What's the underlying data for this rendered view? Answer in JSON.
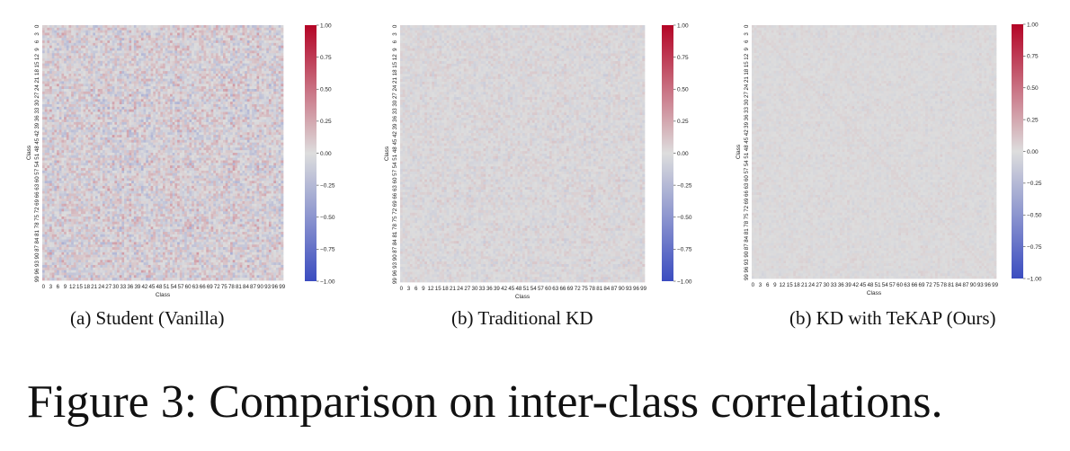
{
  "figure_caption": "Figure 3: Comparison on inter-class correlations.",
  "colormap": {
    "negative": "#3b4cc0",
    "neutral": "#dddddd",
    "positive": "#b40426"
  },
  "chart_data": [
    {
      "type": "heatmap",
      "caption": "(a) Student (Vanilla)",
      "xlabel": "Class",
      "ylabel": "Class",
      "x_ticks": [
        "0",
        "3",
        "6",
        "9",
        "12",
        "15",
        "18",
        "21",
        "24",
        "27",
        "30",
        "33",
        "36",
        "39",
        "42",
        "45",
        "48",
        "51",
        "54",
        "57",
        "60",
        "63",
        "66",
        "69",
        "72",
        "75",
        "78",
        "81",
        "84",
        "87",
        "90",
        "93",
        "96",
        "99"
      ],
      "y_ticks": [
        "0",
        "3",
        "6",
        "9",
        "12",
        "15",
        "18",
        "21",
        "24",
        "27",
        "30",
        "33",
        "36",
        "39",
        "42",
        "45",
        "48",
        "51",
        "54",
        "57",
        "60",
        "63",
        "66",
        "69",
        "72",
        "75",
        "78",
        "81",
        "84",
        "87",
        "90",
        "93",
        "96",
        "99"
      ],
      "n_classes": 100,
      "value_range": [
        -1.0,
        1.0
      ],
      "colorbar_ticks": [
        "1.00",
        "0.75",
        "0.50",
        "0.25",
        "0.00",
        "−0.25",
        "−0.50",
        "−0.75",
        "−1.00"
      ],
      "typical_abs_correlation": 0.25
    },
    {
      "type": "heatmap",
      "caption": "(b) Traditional KD",
      "xlabel": "Class",
      "ylabel": "Class",
      "x_ticks": [
        "0",
        "3",
        "6",
        "9",
        "12",
        "15",
        "18",
        "21",
        "24",
        "27",
        "30",
        "33",
        "36",
        "39",
        "42",
        "45",
        "48",
        "51",
        "54",
        "57",
        "60",
        "63",
        "66",
        "69",
        "72",
        "75",
        "78",
        "81",
        "84",
        "87",
        "90",
        "93",
        "96",
        "99"
      ],
      "y_ticks": [
        "0",
        "3",
        "6",
        "9",
        "12",
        "15",
        "18",
        "21",
        "24",
        "27",
        "30",
        "33",
        "36",
        "39",
        "42",
        "45",
        "48",
        "51",
        "54",
        "57",
        "60",
        "63",
        "66",
        "69",
        "72",
        "75",
        "78",
        "81",
        "84",
        "87",
        "90",
        "93",
        "96",
        "99"
      ],
      "n_classes": 100,
      "value_range": [
        -1.0,
        1.0
      ],
      "colorbar_ticks": [
        "1.00",
        "0.75",
        "0.50",
        "0.25",
        "0.00",
        "−0.25",
        "−0.50",
        "−0.75",
        "−1.00"
      ],
      "typical_abs_correlation": 0.1
    },
    {
      "type": "heatmap",
      "caption": "(b) KD with TeKAP (Ours)",
      "xlabel": "Class",
      "ylabel": "Class",
      "x_ticks": [
        "0",
        "3",
        "6",
        "9",
        "12",
        "15",
        "18",
        "21",
        "24",
        "27",
        "30",
        "33",
        "36",
        "39",
        "42",
        "45",
        "48",
        "51",
        "54",
        "57",
        "60",
        "63",
        "66",
        "69",
        "72",
        "75",
        "78",
        "81",
        "84",
        "87",
        "90",
        "93",
        "96",
        "99"
      ],
      "y_ticks": [
        "0",
        "3",
        "6",
        "9",
        "12",
        "15",
        "18",
        "21",
        "24",
        "27",
        "30",
        "33",
        "36",
        "39",
        "42",
        "45",
        "48",
        "51",
        "54",
        "57",
        "60",
        "63",
        "66",
        "69",
        "72",
        "75",
        "78",
        "81",
        "84",
        "87",
        "90",
        "93",
        "96",
        "99"
      ],
      "n_classes": 100,
      "value_range": [
        -1.0,
        1.0
      ],
      "colorbar_ticks": [
        "1.00",
        "0.75",
        "0.50",
        "0.25",
        "0.00",
        "−0.25",
        "−0.50",
        "−0.75",
        "−1.00"
      ],
      "typical_abs_correlation": 0.06
    }
  ]
}
